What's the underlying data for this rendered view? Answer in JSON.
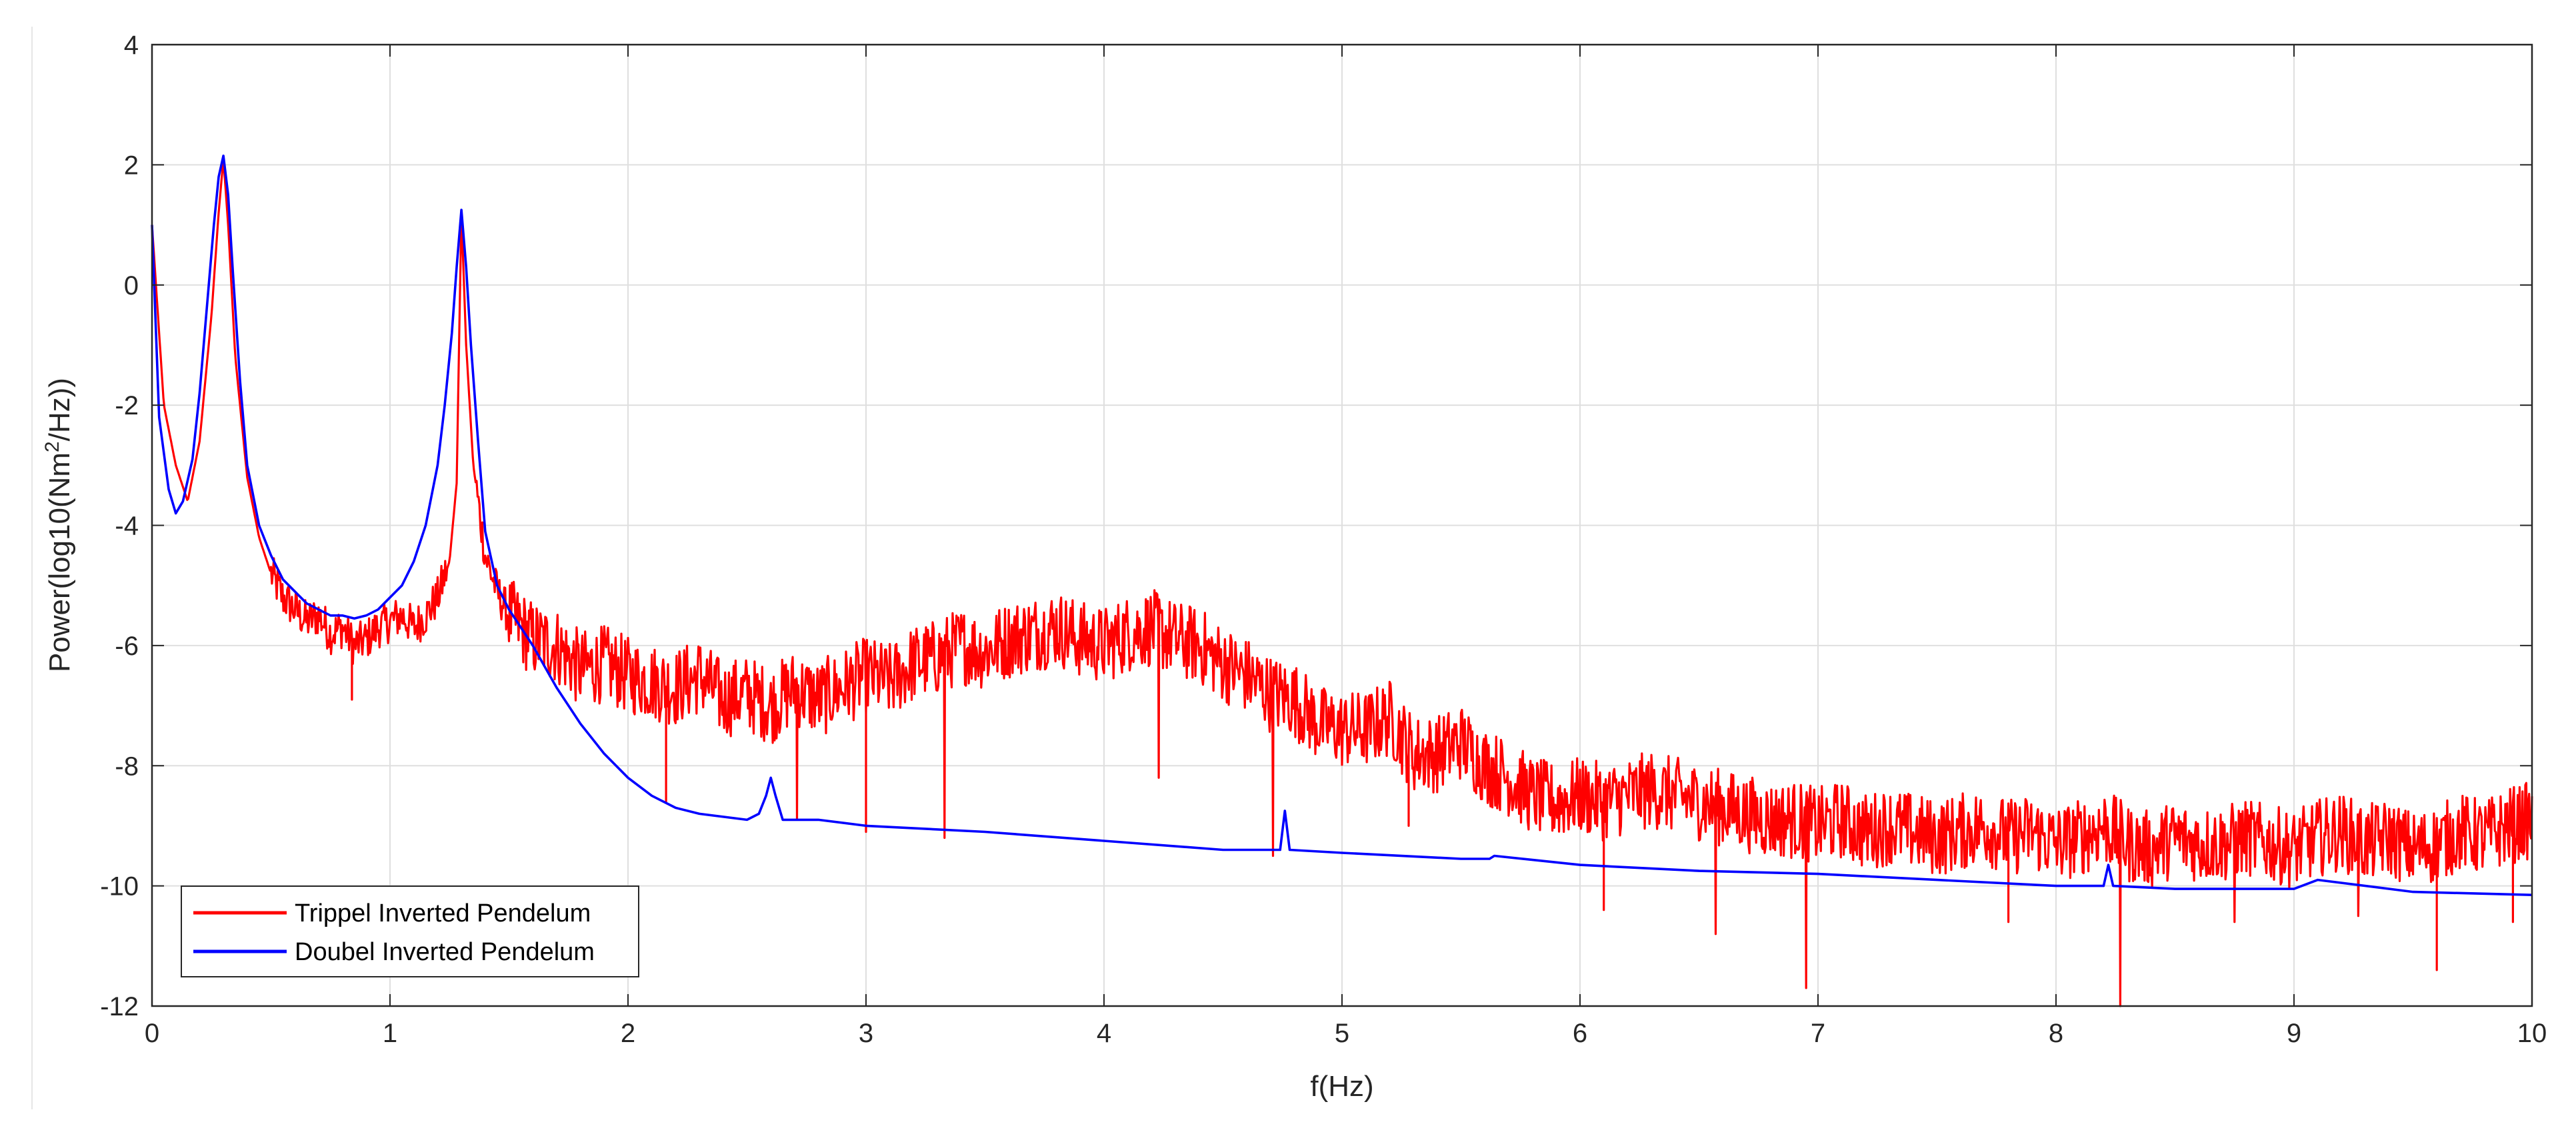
{
  "chart_data": {
    "type": "line",
    "title": "",
    "xlabel": "f(Hz)",
    "ylabel": {
      "prefix": "Power(log10(Nm",
      "superscript": "2",
      "suffix": "/Hz))"
    },
    "xlim": [
      0,
      10
    ],
    "ylim": [
      -12,
      4
    ],
    "xticks": [
      0,
      1,
      2,
      3,
      4,
      5,
      6,
      7,
      8,
      9,
      10
    ],
    "yticks": [
      -12,
      -10,
      -8,
      -6,
      -4,
      -2,
      0,
      2,
      4
    ],
    "xtick_labels": [
      "0",
      "1",
      "2",
      "3",
      "4",
      "5",
      "6",
      "7",
      "8",
      "9",
      "10"
    ],
    "ytick_labels": [
      "-12",
      "-10",
      "-8",
      "-6",
      "-4",
      "-2",
      "0",
      "2",
      "4"
    ],
    "grid": true,
    "legend_position": "bottom-left",
    "series": [
      {
        "name": "Trippel Inverted Pendelum",
        "color": "#ff0000",
        "x": [
          0.0,
          0.05,
          0.1,
          0.15,
          0.2,
          0.25,
          0.28,
          0.3,
          0.32,
          0.35,
          0.4,
          0.45,
          0.5,
          0.55,
          0.6,
          0.65,
          0.7,
          0.75,
          0.8,
          0.85,
          0.9,
          0.95,
          1.0,
          1.05,
          1.1,
          1.15,
          1.2,
          1.25,
          1.28,
          1.3,
          1.32,
          1.35,
          1.4,
          1.45,
          1.5,
          1.6,
          1.7,
          1.8,
          1.9,
          2.0,
          2.1,
          2.2,
          2.3,
          2.4,
          2.5,
          2.6,
          2.7,
          2.8,
          2.9,
          3.0,
          3.1,
          3.2,
          3.3,
          3.4,
          3.5,
          3.6,
          3.7,
          3.8,
          3.9,
          4.0,
          4.1,
          4.2,
          4.3,
          4.4,
          4.5,
          4.6,
          4.7,
          4.8,
          4.9,
          5.0,
          5.1,
          5.2,
          5.3,
          5.4,
          5.5,
          5.6,
          5.7,
          5.8,
          5.9,
          6.0,
          6.1,
          6.2,
          6.3,
          6.4,
          6.5,
          6.6,
          6.7,
          6.8,
          6.9,
          7.0,
          7.1,
          7.2,
          7.3,
          7.4,
          7.5,
          7.6,
          7.7,
          7.8,
          7.9,
          8.0,
          8.1,
          8.2,
          8.3,
          8.4,
          8.5,
          8.6,
          8.7,
          8.8,
          8.9,
          9.0,
          9.1,
          9.2,
          9.3,
          9.4,
          9.5,
          9.6,
          9.7,
          9.8,
          9.9,
          10.0
        ],
        "y": [
          1.0,
          -2.0,
          -3.0,
          -3.6,
          -2.6,
          -0.5,
          1.2,
          2.1,
          1.0,
          -1.2,
          -3.2,
          -4.2,
          -4.8,
          -5.2,
          -5.4,
          -5.6,
          -5.5,
          -5.8,
          -5.7,
          -6.0,
          -5.9,
          -5.7,
          -5.6,
          -5.5,
          -5.7,
          -5.5,
          -5.2,
          -4.6,
          -3.3,
          1.2,
          -1.0,
          -3.0,
          -4.5,
          -5.1,
          -5.5,
          -5.9,
          -6.0,
          -6.4,
          -6.3,
          -6.5,
          -6.6,
          -6.7,
          -6.5,
          -6.9,
          -6.8,
          -7.0,
          -6.7,
          -6.9,
          -6.7,
          -6.5,
          -6.6,
          -6.3,
          -6.2,
          -6.0,
          -6.1,
          -5.9,
          -5.8,
          -5.7,
          -5.9,
          -6.0,
          -5.8,
          -5.7,
          -5.9,
          -6.0,
          -6.3,
          -6.5,
          -6.8,
          -6.9,
          -7.3,
          -7.4,
          -7.4,
          -7.2,
          -7.8,
          -7.8,
          -7.6,
          -8.0,
          -8.2,
          -8.5,
          -8.6,
          -8.5,
          -8.6,
          -8.5,
          -8.4,
          -8.5,
          -8.6,
          -8.7,
          -8.8,
          -8.9,
          -8.9,
          -9.0,
          -8.9,
          -9.1,
          -9.0,
          -9.1,
          -9.2,
          -9.1,
          -9.0,
          -9.2,
          -9.1,
          -9.3,
          -9.2,
          -9.0,
          -9.3,
          -9.4,
          -9.2,
          -9.3,
          -9.3,
          -9.2,
          -9.3,
          -9.4,
          -9.2,
          -9.1,
          -9.3,
          -9.2,
          -9.4,
          -9.3,
          -9.1,
          -9.2,
          -9.0,
          -8.9
        ],
        "dips": [
          [
            0.84,
            -6.9
          ],
          [
            2.16,
            -8.6
          ],
          [
            2.71,
            -8.9
          ],
          [
            3.0,
            -9.1
          ],
          [
            3.33,
            -9.2
          ],
          [
            4.23,
            -8.2
          ],
          [
            4.71,
            -9.5
          ],
          [
            5.28,
            -9.0
          ],
          [
            6.1,
            -10.4
          ],
          [
            6.57,
            -10.8
          ],
          [
            6.95,
            -11.7
          ],
          [
            7.8,
            -10.6
          ],
          [
            8.27,
            -12.0
          ],
          [
            8.75,
            -10.6
          ],
          [
            9.27,
            -10.5
          ],
          [
            9.6,
            -11.4
          ],
          [
            9.92,
            -10.6
          ]
        ]
      },
      {
        "name": "Doubel Inverted Pendelum",
        "color": "#0000ff",
        "x": [
          0.0,
          0.03,
          0.07,
          0.1,
          0.13,
          0.17,
          0.2,
          0.23,
          0.26,
          0.28,
          0.3,
          0.32,
          0.34,
          0.37,
          0.4,
          0.45,
          0.5,
          0.55,
          0.6,
          0.65,
          0.7,
          0.75,
          0.8,
          0.85,
          0.9,
          0.95,
          1.0,
          1.05,
          1.1,
          1.15,
          1.2,
          1.23,
          1.26,
          1.28,
          1.3,
          1.32,
          1.34,
          1.37,
          1.4,
          1.45,
          1.5,
          1.6,
          1.7,
          1.8,
          1.9,
          2.0,
          2.1,
          2.2,
          2.3,
          2.4,
          2.5,
          2.55,
          2.58,
          2.6,
          2.62,
          2.65,
          2.8,
          3.0,
          3.5,
          4.0,
          4.5,
          4.74,
          4.76,
          4.78,
          5.0,
          5.5,
          5.62,
          5.64,
          6.0,
          6.5,
          7.0,
          7.5,
          8.0,
          8.2,
          8.22,
          8.24,
          8.5,
          9.0,
          9.1,
          9.5,
          10.0
        ],
        "y": [
          1.0,
          -2.2,
          -3.4,
          -3.8,
          -3.6,
          -2.9,
          -1.8,
          -0.4,
          1.0,
          1.8,
          2.15,
          1.5,
          0.2,
          -1.6,
          -3.0,
          -4.0,
          -4.5,
          -4.9,
          -5.1,
          -5.3,
          -5.4,
          -5.5,
          -5.5,
          -5.55,
          -5.5,
          -5.4,
          -5.2,
          -5.0,
          -4.6,
          -4.0,
          -3.0,
          -2.0,
          -0.8,
          0.3,
          1.25,
          0.3,
          -1.0,
          -2.6,
          -4.1,
          -5.0,
          -5.4,
          -6.0,
          -6.7,
          -7.3,
          -7.8,
          -8.2,
          -8.5,
          -8.7,
          -8.8,
          -8.85,
          -8.9,
          -8.8,
          -8.5,
          -8.2,
          -8.5,
          -8.9,
          -8.9,
          -9.0,
          -9.1,
          -9.25,
          -9.4,
          -9.4,
          -8.75,
          -9.4,
          -9.45,
          -9.55,
          -9.55,
          -9.5,
          -9.65,
          -9.75,
          -9.8,
          -9.9,
          -10.0,
          -10.0,
          -9.65,
          -10.0,
          -10.05,
          -10.05,
          -9.9,
          -10.1,
          -10.15
        ]
      }
    ]
  }
}
